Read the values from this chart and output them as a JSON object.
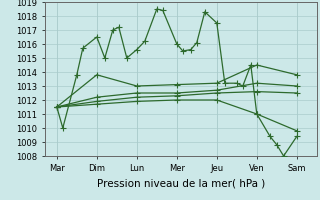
{
  "x_labels": [
    "Mar",
    "Dim",
    "Lun",
    "Mer",
    "Jeu",
    "Ven",
    "Sam"
  ],
  "x_positions": [
    0,
    1,
    2,
    3,
    4,
    5,
    6
  ],
  "line_color": "#2d6a2d",
  "marker": "+",
  "markersize": 4,
  "linewidth": 0.9,
  "ylim": [
    1008,
    1019
  ],
  "yticks": [
    1008,
    1009,
    1010,
    1011,
    1012,
    1013,
    1014,
    1015,
    1016,
    1017,
    1018,
    1019
  ],
  "xlabel": "Pression niveau de la mer( hPa )",
  "background_color": "#cce8e8",
  "grid_color": "#aacccc",
  "main_x": [
    0.0,
    0.15,
    0.5,
    0.65,
    1.0,
    1.2,
    1.4,
    1.55,
    1.75,
    2.0,
    2.2,
    2.5,
    2.65,
    3.0,
    3.15,
    3.35,
    3.5,
    3.7,
    4.0,
    4.2,
    4.5,
    4.65,
    4.85,
    5.0,
    5.33,
    5.5,
    5.67,
    6.0
  ],
  "main_y": [
    1011.5,
    1010.0,
    1013.8,
    1015.7,
    1016.5,
    1015.0,
    1017.0,
    1017.2,
    1015.0,
    1015.6,
    1016.2,
    1018.5,
    1018.4,
    1016.0,
    1015.5,
    1015.6,
    1016.1,
    1018.3,
    1017.5,
    1013.2,
    1013.2,
    1013.0,
    1014.5,
    1011.0,
    1009.4,
    1008.8,
    1008.0,
    1009.4
  ],
  "trend_lines": [
    {
      "x": [
        0.0,
        1.0,
        2.0,
        3.0,
        4.0,
        5.0,
        6.0
      ],
      "y": [
        1011.5,
        1013.8,
        1013.0,
        1013.1,
        1013.2,
        1014.5,
        1013.8
      ]
    },
    {
      "x": [
        0.0,
        1.0,
        2.0,
        3.0,
        4.0,
        5.0,
        6.0
      ],
      "y": [
        1011.5,
        1012.2,
        1012.5,
        1012.5,
        1012.7,
        1013.2,
        1013.0
      ]
    },
    {
      "x": [
        0.0,
        1.0,
        2.0,
        3.0,
        4.0,
        5.0,
        6.0
      ],
      "y": [
        1011.5,
        1011.9,
        1012.2,
        1012.3,
        1012.5,
        1012.6,
        1012.5
      ]
    },
    {
      "x": [
        0.0,
        1.0,
        2.0,
        3.0,
        4.0,
        5.0,
        6.0
      ],
      "y": [
        1011.5,
        1011.7,
        1011.9,
        1012.0,
        1012.0,
        1011.0,
        1009.8
      ]
    }
  ]
}
